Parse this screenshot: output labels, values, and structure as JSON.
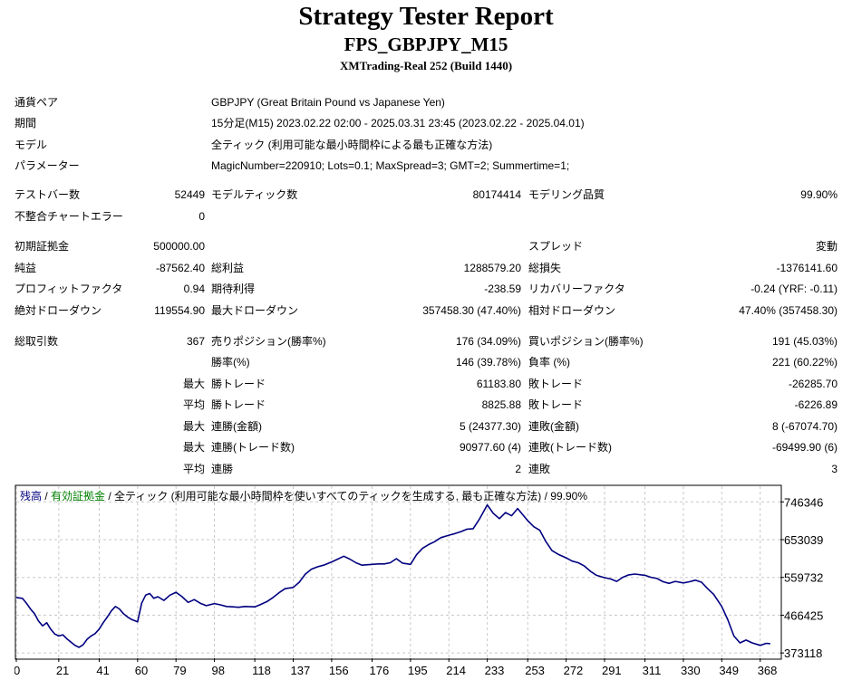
{
  "header": {
    "title": "Strategy Tester Report",
    "subtitle": "FPS_GBPJPY_M15",
    "build": "XMTrading-Real 252 (Build 1440)"
  },
  "info": {
    "symbol_label": "通貨ペア",
    "symbol_value": "GBPJPY (Great Britain Pound vs Japanese Yen)",
    "period_label": "期間",
    "period_value": "15分足(M15) 2023.02.22 02:00 - 2025.03.31 23:45 (2023.02.22 - 2025.04.01)",
    "model_label": "モデル",
    "model_value": "全ティック (利用可能な最小時間枠による最も正確な方法)",
    "params_label": "パラメーター",
    "params_value": "MagicNumber=220910; Lots=0.1; MaxSpread=3; GMT=2; Summertime=1;"
  },
  "stats": {
    "bars_label": "テストバー数",
    "bars_value": "52449",
    "ticks_label": "モデルティック数",
    "ticks_value": "80174414",
    "quality_label": "モデリング品質",
    "quality_value": "99.90%",
    "mismatch_label": "不整合チャートエラー",
    "mismatch_value": "0",
    "deposit_label": "初期証拠金",
    "deposit_value": "500000.00",
    "spread_label": "スプレッド",
    "spread_value": "変動",
    "net_label": "純益",
    "net_value": "-87562.40",
    "gross_profit_label": "総利益",
    "gross_profit_value": "1288579.20",
    "gross_loss_label": "総損失",
    "gross_loss_value": "-1376141.60",
    "pf_label": "プロフィットファクタ",
    "pf_value": "0.94",
    "payoff_label": "期待利得",
    "payoff_value": "-238.59",
    "recovery_label": "リカバリーファクタ",
    "recovery_value": "-0.24 (YRF: -0.11)",
    "abs_dd_label": "絶対ドローダウン",
    "abs_dd_value": "119554.90",
    "max_dd_label": "最大ドローダウン",
    "max_dd_value": "357458.30 (47.40%)",
    "rel_dd_label": "相対ドローダウン",
    "rel_dd_value": "47.40% (357458.30)",
    "total_label": "総取引数",
    "total_value": "367",
    "short_label": "売りポジション(勝率%)",
    "short_value": "176 (34.09%)",
    "long_label": "買いポジション(勝率%)",
    "long_value": "191 (45.03%)",
    "win_pct_label": "勝率(%)",
    "win_pct_value": "146 (39.78%)",
    "loss_pct_label": "負率 (%)",
    "loss_pct_value": "221 (60.22%)",
    "max_prefix": "最大",
    "avg_prefix": "平均",
    "largest_win_label": "勝トレード",
    "largest_win_value": "61183.80",
    "largest_loss_label": "敗トレード",
    "largest_loss_value": "-26285.70",
    "avg_win_label": "勝トレード",
    "avg_win_value": "8825.88",
    "avg_loss_label": "敗トレード",
    "avg_loss_value": "-6226.89",
    "max_cons_wins_label": "連勝(金額)",
    "max_cons_wins_value": "5 (24377.30)",
    "max_cons_losses_label": "連敗(金額)",
    "max_cons_losses_value": "8 (-67074.70)",
    "max_cons_profit_label": "連勝(トレード数)",
    "max_cons_profit_value": "90977.60 (4)",
    "max_cons_loss_label": "連敗(トレード数)",
    "max_cons_loss_value": "-69499.90 (6)",
    "avg_cons_wins_label": "連勝",
    "avg_cons_wins_value": "2",
    "avg_cons_losses_label": "連敗",
    "avg_cons_losses_value": "3"
  },
  "chart_legend": {
    "balance": "残高",
    "sep1": " / ",
    "equity": "有効証拠金",
    "rest": " / 全ティック (利用可能な最小時間枠を使いすべてのティックを生成する, 最も正確な方法) / 99.90%"
  },
  "colors": {
    "balance": "#000080",
    "equity": "#008000",
    "grid": "#c8c8c8"
  },
  "chart_data": {
    "type": "line",
    "title": "",
    "xlabel": "",
    "ylabel": "",
    "xlim": [
      0,
      378
    ],
    "ylim": [
      360000,
      785000
    ],
    "grid": true,
    "legend": "top-left",
    "x_ticks": [
      0,
      21,
      41,
      60,
      79,
      98,
      118,
      137,
      156,
      176,
      195,
      214,
      233,
      253,
      272,
      291,
      311,
      330,
      349,
      368
    ],
    "y_ticks": [
      746346,
      653039,
      559732,
      466425,
      373118
    ],
    "series": [
      {
        "name": "残高",
        "x": [
          0,
          3,
          5,
          7,
          9,
          11,
          13,
          15,
          17,
          19,
          21,
          23,
          25,
          27,
          29,
          31,
          33,
          35,
          37,
          39,
          41,
          43,
          45,
          47,
          49,
          51,
          53,
          55,
          57,
          59,
          60,
          62,
          64,
          66,
          68,
          70,
          73,
          76,
          79,
          82,
          85,
          88,
          91,
          94,
          98,
          101,
          104,
          107,
          110,
          113,
          118,
          121,
          124,
          127,
          130,
          133,
          137,
          140,
          143,
          146,
          149,
          152,
          156,
          159,
          162,
          165,
          168,
          171,
          176,
          179,
          182,
          185,
          188,
          191,
          195,
          198,
          201,
          204,
          207,
          210,
          214,
          217,
          220,
          223,
          226,
          229,
          233,
          236,
          239,
          242,
          245,
          248,
          253,
          256,
          259,
          262,
          265,
          268,
          272,
          275,
          278,
          281,
          284,
          287,
          291,
          294,
          297,
          300,
          303,
          306,
          311,
          314,
          317,
          320,
          323,
          326,
          330,
          333,
          336,
          339,
          342,
          345,
          349,
          352,
          355,
          358,
          361,
          364,
          368,
          371,
          373
        ],
        "y": [
          510000,
          508000,
          496000,
          482000,
          470000,
          452000,
          440000,
          448000,
          432000,
          420000,
          415000,
          418000,
          408000,
          400000,
          392000,
          387000,
          393000,
          407000,
          415000,
          421000,
          432000,
          448000,
          462000,
          477000,
          488000,
          482000,
          470000,
          462000,
          456000,
          452000,
          450000,
          496000,
          516000,
          520000,
          508000,
          512000,
          503000,
          516000,
          523000,
          512000,
          498000,
          505000,
          496000,
          490000,
          495000,
          492000,
          488000,
          487000,
          486000,
          488000,
          487000,
          493000,
          500000,
          510000,
          522000,
          532000,
          535000,
          548000,
          568000,
          580000,
          586000,
          590000,
          598000,
          605000,
          612000,
          605000,
          596000,
          590000,
          592000,
          593000,
          593000,
          596000,
          606000,
          595000,
          592000,
          616000,
          632000,
          641000,
          648000,
          658000,
          664000,
          668000,
          673000,
          679000,
          680000,
          703000,
          739000,
          718000,
          705000,
          720000,
          712000,
          730000,
          700000,
          685000,
          676000,
          648000,
          626000,
          617000,
          608000,
          600000,
          596000,
          588000,
          575000,
          565000,
          559000,
          556000,
          550000,
          560000,
          566000,
          568000,
          565000,
          560000,
          557000,
          549000,
          545000,
          550000,
          546000,
          549000,
          553000,
          548000,
          532000,
          518000,
          488000,
          455000,
          415000,
          398000,
          405000,
          398000,
          392000,
          397000,
          396000
        ]
      }
    ]
  }
}
